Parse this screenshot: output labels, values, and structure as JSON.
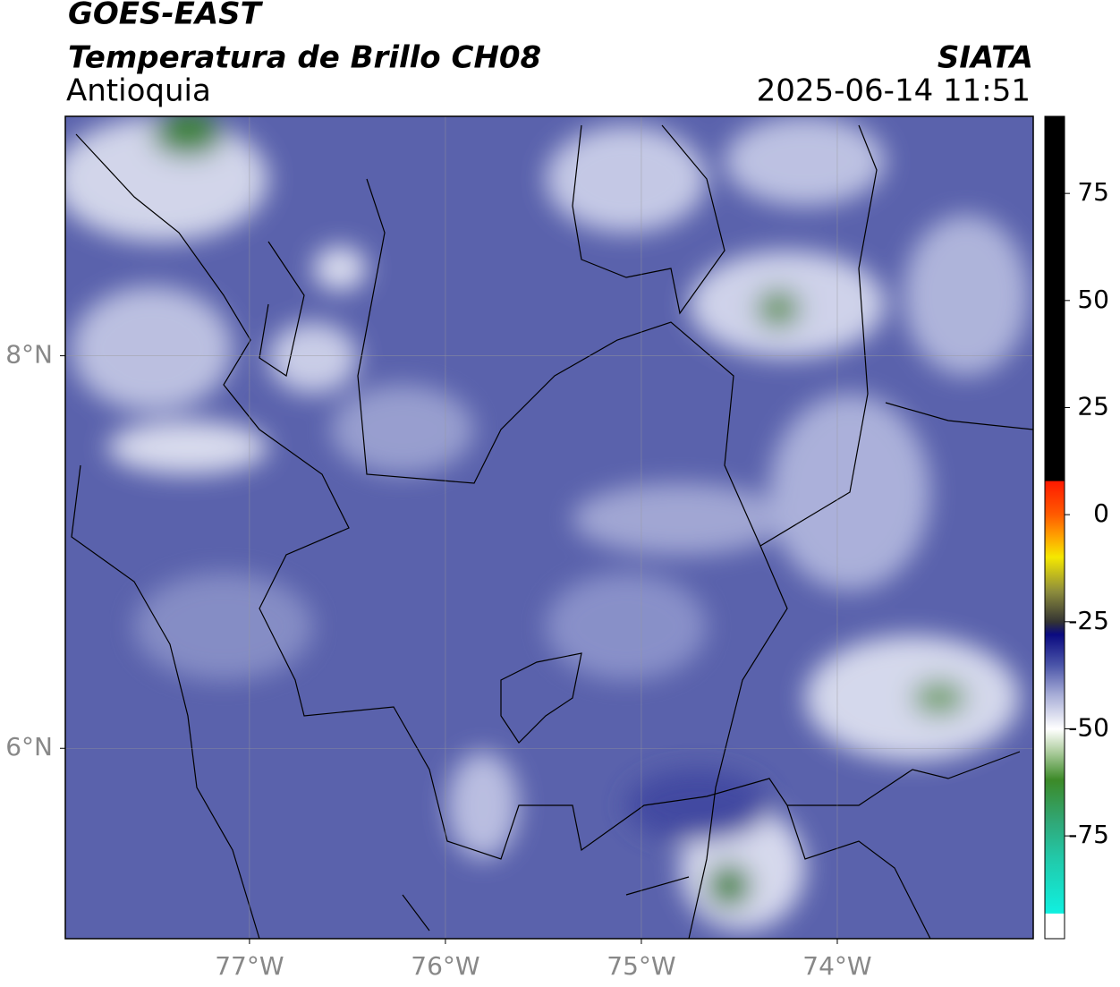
{
  "header": {
    "title": "GOES-EAST",
    "subtitle": "Temperatura de Brillo CH08",
    "region": "Antioquia",
    "source": "SIATA",
    "datetime": "2025-06-14 11:51"
  },
  "map": {
    "lon_range": [
      -77.94,
      -73.0
    ],
    "lat_range": [
      5.03,
      9.22
    ],
    "lon_ticks": [
      {
        "value": -77,
        "label": "77°W"
      },
      {
        "value": -76,
        "label": "76°W"
      },
      {
        "value": -75,
        "label": "75°W"
      },
      {
        "value": -74,
        "label": "74°W"
      }
    ],
    "lat_ticks": [
      {
        "value": 8,
        "label": "8°N"
      },
      {
        "value": 6,
        "label": "6°N"
      }
    ]
  },
  "colorbar": {
    "range": [
      -99,
      93
    ],
    "ticks": [
      75,
      50,
      25,
      0,
      -25,
      -50,
      -75
    ]
  }
}
